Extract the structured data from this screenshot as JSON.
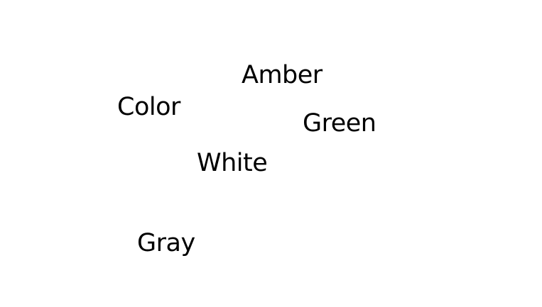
{
  "words": {
    "color": "Color",
    "amber": "Amber",
    "green": "Green",
    "white": "White",
    "gray": "Gray"
  },
  "colors": {
    "background": "#ffffff",
    "text": "#000000"
  }
}
